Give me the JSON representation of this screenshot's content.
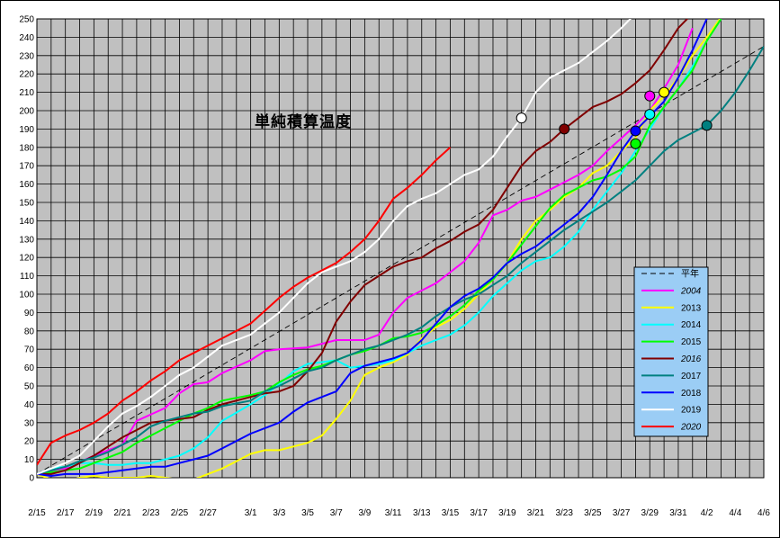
{
  "chart_data": {
    "type": "line",
    "title": "単純積算温度",
    "xlabel": "",
    "ylabel": "",
    "ylim": [
      0,
      250
    ],
    "yticks": [
      0,
      10,
      20,
      30,
      40,
      50,
      60,
      70,
      80,
      90,
      100,
      110,
      120,
      130,
      140,
      150,
      160,
      170,
      180,
      190,
      200,
      210,
      220,
      230,
      240,
      250
    ],
    "x_start": "2/15",
    "x_tick_labels": [
      "2/15",
      "2/17",
      "2/19",
      "2/21",
      "2/23",
      "2/25",
      "2/27",
      "3/1",
      "3/3",
      "3/5",
      "3/7",
      "3/9",
      "3/11",
      "3/13",
      "3/15",
      "3/17",
      "3/19",
      "3/21",
      "3/23",
      "3/25",
      "3/27",
      "3/29",
      "3/31",
      "4/2",
      "4/4",
      "4/6"
    ],
    "grid": true,
    "legend_position": "right-inside",
    "legend_background": "#9bcdf5",
    "plot_background": "#c0c0c0",
    "series": [
      {
        "name": "平年",
        "color": "#000000",
        "dashed": true,
        "x": [
          "2/15",
          "4/6"
        ],
        "y": [
          2,
          235
        ]
      },
      {
        "name": "2004",
        "color": "#ff00ff",
        "italic": true,
        "x": [
          "2/15",
          "2/17",
          "2/19",
          "2/21",
          "2/22",
          "2/24",
          "2/25",
          "2/26",
          "2/27",
          "2/28",
          "3/1",
          "3/2",
          "3/3",
          "3/5",
          "3/6",
          "3/7",
          "3/8",
          "3/9",
          "3/10",
          "3/11",
          "3/12",
          "3/13",
          "3/14",
          "3/15",
          "3/16",
          "3/17",
          "3/18",
          "3/19",
          "3/20",
          "3/21",
          "3/22",
          "3/23",
          "3/24",
          "3/25",
          "3/26",
          "3/27",
          "3/28",
          "3/29",
          "3/30",
          "3/31",
          "4/1"
        ],
        "y": [
          2,
          5,
          12,
          18,
          31,
          38,
          46,
          51,
          52,
          57,
          64,
          69,
          70,
          71,
          73,
          75,
          75,
          75,
          78,
          90,
          98,
          102,
          106,
          112,
          118,
          128,
          143,
          146,
          151,
          153,
          157,
          161,
          165,
          170,
          178,
          185,
          192,
          200,
          212,
          225,
          245
        ],
        "marker": {
          "x": "3/29",
          "y": 208,
          "color": "#ff00ff"
        }
      },
      {
        "name": "2013",
        "color": "#ffff00",
        "x": [
          "2/15",
          "2/16",
          "2/17",
          "2/18",
          "2/19",
          "2/20",
          "2/21",
          "2/22",
          "2/23",
          "2/24",
          "2/25",
          "2/26",
          "2/27",
          "2/28",
          "3/1",
          "3/2",
          "3/3",
          "3/4",
          "3/5",
          "3/6",
          "3/7",
          "3/8",
          "3/9",
          "3/10",
          "3/11",
          "3/12",
          "3/13",
          "3/14",
          "3/15",
          "3/16",
          "3/17",
          "3/18",
          "3/19",
          "3/20",
          "3/21",
          "3/22",
          "3/23",
          "3/24",
          "3/25",
          "3/26",
          "3/27",
          "3/28",
          "3/29",
          "3/30",
          "3/31",
          "4/1",
          "4/2",
          "4/3"
        ],
        "y": [
          2,
          -1,
          -2,
          0,
          1,
          0,
          0,
          0,
          1,
          0,
          -1,
          -1,
          2,
          5,
          13,
          15,
          15,
          17,
          19,
          23,
          32,
          42,
          56,
          60,
          63,
          67,
          76,
          82,
          86,
          92,
          100,
          108,
          117,
          130,
          140,
          146,
          153,
          158,
          166,
          170,
          178,
          185,
          200,
          208,
          218,
          230,
          240,
          251
        ],
        "marker": {
          "x": "3/30",
          "y": 210,
          "color": "#ffff00"
        }
      },
      {
        "name": "2014",
        "color": "#00ffff",
        "x": [
          "2/15",
          "2/16",
          "2/17",
          "2/18",
          "2/19",
          "2/20",
          "2/21",
          "2/22",
          "2/23",
          "2/24",
          "2/25",
          "2/26",
          "2/27",
          "2/28",
          "3/1",
          "3/2",
          "3/3",
          "3/4",
          "3/5",
          "3/6",
          "3/7",
          "3/8",
          "3/9",
          "3/10",
          "3/11",
          "3/12",
          "3/13",
          "3/14",
          "3/15",
          "3/16",
          "3/17",
          "3/18",
          "3/19",
          "3/20",
          "3/21",
          "3/22",
          "3/23",
          "3/24",
          "3/25",
          "3/26",
          "3/27",
          "3/28",
          "3/29",
          "3/30",
          "3/31",
          "4/1",
          "4/2",
          "4/3"
        ],
        "y": [
          2,
          5,
          6,
          8,
          8,
          7,
          7,
          8,
          8,
          10,
          12,
          16,
          22,
          31,
          40,
          45,
          51,
          58,
          62,
          63,
          64,
          60,
          61,
          62,
          64,
          68,
          72,
          75,
          78,
          83,
          90,
          99,
          106,
          113,
          118,
          120,
          126,
          134,
          146,
          156,
          166,
          178,
          190,
          202,
          212,
          224,
          238,
          250
        ],
        "marker": {
          "x": "3/29",
          "y": 198,
          "color": "#00ffff"
        }
      },
      {
        "name": "2015",
        "color": "#00ff00",
        "x": [
          "2/15",
          "2/16",
          "2/17",
          "2/18",
          "2/19",
          "2/20",
          "2/21",
          "2/22",
          "2/23",
          "2/24",
          "2/25",
          "2/26",
          "2/27",
          "2/28",
          "3/1",
          "3/2",
          "3/3",
          "3/4",
          "3/5",
          "3/6",
          "3/7",
          "3/8",
          "3/9",
          "3/10",
          "3/11",
          "3/12",
          "3/13",
          "3/14",
          "3/15",
          "3/16",
          "3/17",
          "3/18",
          "3/19",
          "3/20",
          "3/21",
          "3/22",
          "3/23",
          "3/24",
          "3/25",
          "3/26",
          "3/27",
          "3/28",
          "3/29",
          "3/30",
          "3/31",
          "4/1",
          "4/2",
          "4/3"
        ],
        "y": [
          2,
          3,
          4,
          5,
          8,
          11,
          14,
          19,
          23,
          27,
          31,
          35,
          38,
          42,
          45,
          47,
          52,
          56,
          59,
          61,
          64,
          67,
          69,
          72,
          76,
          77,
          79,
          83,
          88,
          94,
          102,
          108,
          117,
          127,
          137,
          147,
          154,
          158,
          162,
          164,
          168,
          175,
          192,
          202,
          212,
          222,
          238,
          250
        ],
        "marker": {
          "x": "3/28",
          "y": 182,
          "color": "#00ff00"
        }
      },
      {
        "name": "2016",
        "color": "#800000",
        "italic": true,
        "x": [
          "2/15",
          "2/16",
          "2/17",
          "2/18",
          "2/19",
          "2/20",
          "2/21",
          "2/22",
          "2/23",
          "2/24",
          "2/25",
          "2/26",
          "2/27",
          "2/28",
          "3/1",
          "3/2",
          "3/3",
          "3/4",
          "3/5",
          "3/6",
          "3/7",
          "3/8",
          "3/9",
          "3/10",
          "3/11",
          "3/12",
          "3/13",
          "3/14",
          "3/15",
          "3/16",
          "3/17",
          "3/18",
          "3/19",
          "3/20",
          "3/21",
          "3/22",
          "3/23",
          "3/24",
          "3/25",
          "3/26",
          "3/27",
          "3/28",
          "3/29",
          "3/30",
          "3/31",
          "4/1"
        ],
        "y": [
          2,
          2,
          4,
          8,
          12,
          17,
          22,
          26,
          30,
          31,
          32,
          33,
          37,
          40,
          44,
          46,
          47,
          50,
          58,
          68,
          85,
          96,
          105,
          110,
          115,
          118,
          120,
          125,
          129,
          134,
          138,
          146,
          158,
          170,
          178,
          183,
          190,
          196,
          202,
          205,
          209,
          215,
          222,
          233,
          245,
          253
        ],
        "marker": {
          "x": "3/23",
          "y": 190,
          "color": "#800000"
        }
      },
      {
        "name": "2017",
        "color": "#008080",
        "x": [
          "2/15",
          "2/16",
          "2/17",
          "2/18",
          "2/19",
          "2/20",
          "2/21",
          "2/22",
          "2/23",
          "2/24",
          "2/25",
          "2/26",
          "2/27",
          "2/28",
          "3/1",
          "3/2",
          "3/3",
          "3/4",
          "3/5",
          "3/6",
          "3/7",
          "3/8",
          "3/9",
          "3/10",
          "3/11",
          "3/12",
          "3/13",
          "3/14",
          "3/15",
          "3/16",
          "3/17",
          "3/18",
          "3/19",
          "3/20",
          "3/21",
          "3/22",
          "3/23",
          "3/24",
          "3/25",
          "3/26",
          "3/27",
          "3/28",
          "3/29",
          "3/30",
          "3/31",
          "4/1",
          "4/2",
          "4/3",
          "4/4",
          "4/5",
          "4/6"
        ],
        "y": [
          2,
          4,
          6,
          9,
          11,
          14,
          18,
          22,
          28,
          31,
          33,
          35,
          36,
          39,
          42,
          47,
          50,
          54,
          58,
          60,
          64,
          67,
          70,
          72,
          75,
          78,
          82,
          88,
          93,
          97,
          100,
          105,
          110,
          117,
          123,
          129,
          135,
          140,
          145,
          150,
          156,
          162,
          170,
          178,
          184,
          188,
          192,
          200,
          210,
          222,
          235
        ],
        "marker": {
          "x": "4/2",
          "y": 192,
          "color": "#008080"
        }
      },
      {
        "name": "2018",
        "color": "#0000ff",
        "x": [
          "2/15",
          "2/16",
          "2/17",
          "2/18",
          "2/19",
          "2/20",
          "2/21",
          "2/22",
          "2/23",
          "2/24",
          "2/25",
          "2/26",
          "2/27",
          "2/28",
          "3/1",
          "3/2",
          "3/3",
          "3/4",
          "3/5",
          "3/6",
          "3/7",
          "3/8",
          "3/9",
          "3/10",
          "3/11",
          "3/12",
          "3/13",
          "3/14",
          "3/15",
          "3/16",
          "3/17",
          "3/18",
          "3/19",
          "3/20",
          "3/21",
          "3/22",
          "3/23",
          "3/24",
          "3/25",
          "3/26",
          "3/27",
          "3/28",
          "3/29",
          "3/30",
          "3/31",
          "4/1",
          "4/2"
        ],
        "y": [
          2,
          1,
          2,
          2,
          2,
          3,
          4,
          5,
          6,
          6,
          8,
          10,
          12,
          16,
          24,
          27,
          30,
          36,
          41,
          44,
          47,
          57,
          61,
          63,
          65,
          68,
          75,
          84,
          93,
          99,
          103,
          109,
          117,
          122,
          126,
          132,
          138,
          144,
          153,
          165,
          178,
          189,
          197,
          205,
          218,
          233,
          250
        ],
        "marker": {
          "x": "3/28",
          "y": 189,
          "color": "#0000ff"
        }
      },
      {
        "name": "2019",
        "color": "#ffffff",
        "x": [
          "2/15",
          "2/16",
          "2/17",
          "2/18",
          "2/19",
          "2/20",
          "2/21",
          "2/22",
          "2/23",
          "2/24",
          "2/25",
          "2/26",
          "2/27",
          "2/28",
          "3/1",
          "3/2",
          "3/3",
          "3/4",
          "3/5",
          "3/6",
          "3/7",
          "3/8",
          "3/9",
          "3/10",
          "3/11",
          "3/12",
          "3/13",
          "3/14",
          "3/15",
          "3/16",
          "3/17",
          "3/18",
          "3/19",
          "3/20",
          "3/21",
          "3/22",
          "3/23",
          "3/24",
          "3/25",
          "3/26",
          "3/27",
          "3/28"
        ],
        "y": [
          2,
          5,
          8,
          12,
          20,
          28,
          35,
          39,
          44,
          50,
          56,
          60,
          66,
          72,
          78,
          84,
          90,
          98,
          106,
          112,
          115,
          118,
          123,
          130,
          140,
          148,
          152,
          155,
          160,
          165,
          168,
          175,
          186,
          196,
          210,
          218,
          222,
          226,
          232,
          238,
          245,
          253
        ],
        "marker": {
          "x": "3/20",
          "y": 196,
          "color": "#ffffff"
        }
      },
      {
        "name": "2020",
        "color": "#ff0000",
        "italic": true,
        "x": [
          "2/15",
          "2/16",
          "2/17",
          "2/18",
          "2/19",
          "2/20",
          "2/21",
          "2/22",
          "2/23",
          "2/24",
          "2/25",
          "2/26",
          "2/27",
          "2/28",
          "3/1",
          "3/2",
          "3/3",
          "3/4",
          "3/5",
          "3/6",
          "3/7",
          "3/8",
          "3/9",
          "3/10",
          "3/11",
          "3/12",
          "3/13",
          "3/14",
          "3/15"
        ],
        "y": [
          7,
          19,
          23,
          26,
          30,
          35,
          42,
          47,
          53,
          58,
          64,
          68,
          72,
          76,
          84,
          91,
          98,
          104,
          109,
          113,
          117,
          123,
          130,
          140,
          152,
          158,
          165,
          173,
          180
        ]
      }
    ]
  }
}
